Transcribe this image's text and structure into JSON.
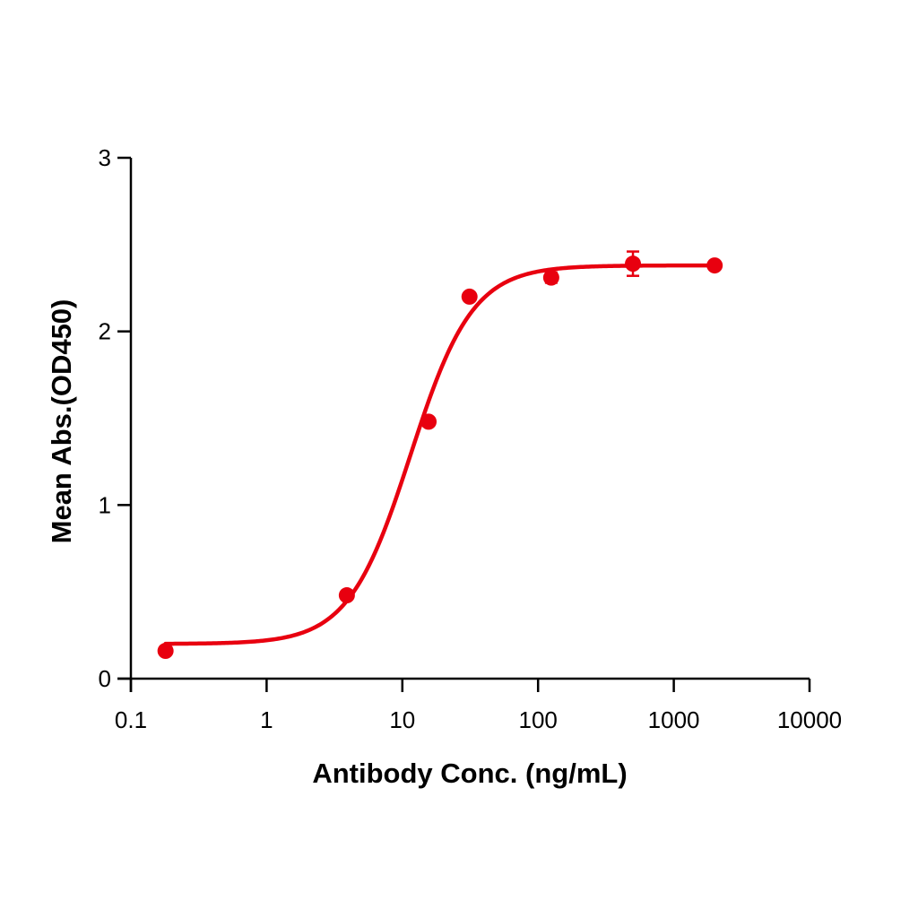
{
  "chart_data": {
    "type": "scatter",
    "title": "",
    "xlabel": "Antibody Conc. (ng/mL)",
    "ylabel": "Mean Abs.(OD450)",
    "xscale": "log",
    "xlim": [
      0.1,
      10000
    ],
    "ylim": [
      0,
      3
    ],
    "x_ticks": [
      "0.1",
      "1",
      "10",
      "100",
      "1000",
      "10000"
    ],
    "y_ticks": [
      "0",
      "1",
      "2",
      "3"
    ],
    "grid": false,
    "legend": null,
    "color": "#e8000f",
    "series": [
      {
        "name": "Mean Abs.(OD450)",
        "x": [
          0.18,
          3.9,
          15.6,
          31.25,
          125,
          500,
          2000
        ],
        "y": [
          0.16,
          0.48,
          1.48,
          2.2,
          2.31,
          2.39,
          2.38
        ],
        "error": [
          0,
          0,
          0,
          0,
          0.03,
          0.07,
          0
        ]
      }
    ],
    "fit": {
      "type": "4PL",
      "bottom": 0.2,
      "top": 2.38,
      "ec50": 11.5,
      "hill": 1.9,
      "x_range": [
        0.18,
        2000
      ]
    }
  }
}
